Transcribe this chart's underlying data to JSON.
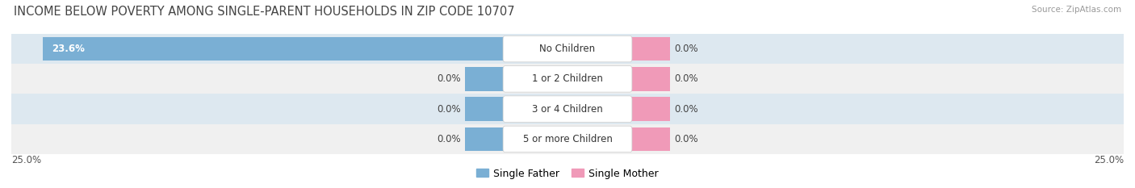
{
  "title": "INCOME BELOW POVERTY AMONG SINGLE-PARENT HOUSEHOLDS IN ZIP CODE 10707",
  "source": "Source: ZipAtlas.com",
  "categories": [
    "No Children",
    "1 or 2 Children",
    "3 or 4 Children",
    "5 or more Children"
  ],
  "single_father": [
    23.6,
    0.0,
    0.0,
    0.0
  ],
  "single_mother": [
    0.0,
    0.0,
    0.0,
    0.0
  ],
  "max_val": 25.0,
  "father_color": "#7aafd4",
  "mother_color": "#f09ab8",
  "row_bg_even": "#dde8f0",
  "row_bg_odd": "#f0f0f0",
  "title_fontsize": 10.5,
  "source_fontsize": 7.5,
  "label_fontsize": 8.5,
  "val_fontsize": 8.5,
  "axis_label_fontsize": 8.5,
  "legend_fontsize": 9
}
